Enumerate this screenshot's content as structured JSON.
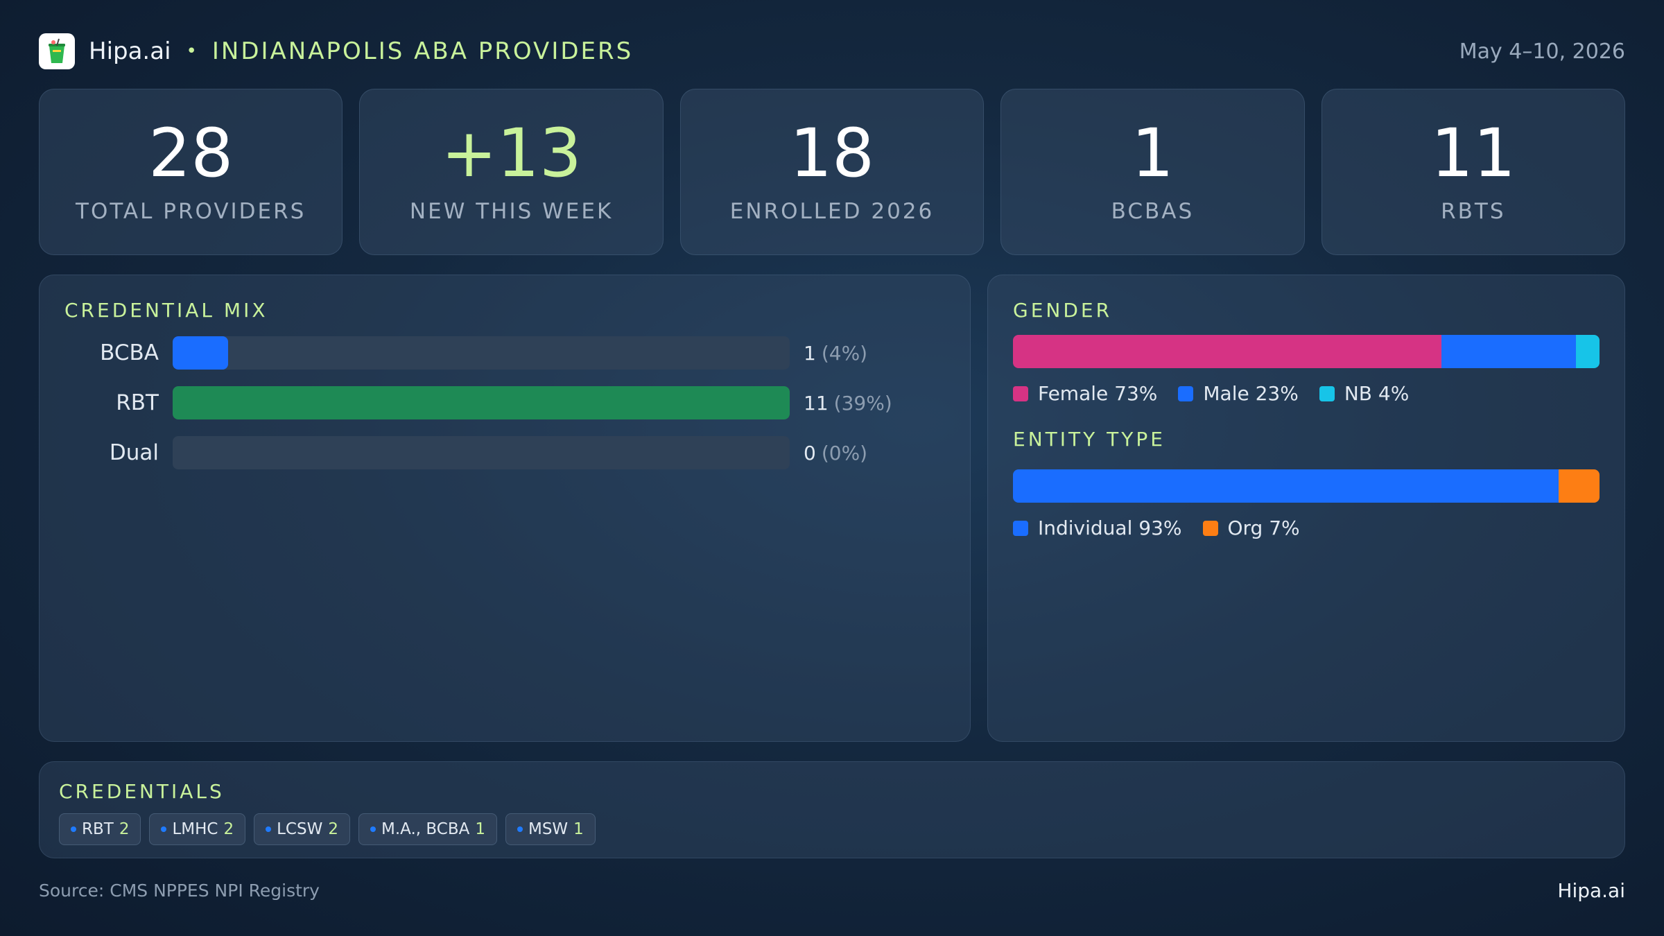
{
  "header": {
    "brand": "Hipa.ai",
    "separator": "•",
    "title": "INDIANAPOLIS ABA PROVIDERS",
    "date_range": "May 4–10, 2026",
    "logo_icon": "drink-cup-icon"
  },
  "kpis": [
    {
      "value": "28",
      "label": "TOTAL PROVIDERS"
    },
    {
      "value": "+13",
      "label": "NEW THIS WEEK"
    },
    {
      "value": "18",
      "label": "ENROLLED 2026"
    },
    {
      "value": "1",
      "label": "BCBAS"
    },
    {
      "value": "11",
      "label": "RBTS"
    }
  ],
  "credential_mix": {
    "title": "CREDENTIAL MIX",
    "rows": [
      {
        "label": "BCBA",
        "count": "1",
        "pct_text": "(4%)",
        "fraction": 0.09,
        "color": "#1a6dff"
      },
      {
        "label": "RBT",
        "count": "11",
        "pct_text": "(39%)",
        "fraction": 1.0,
        "color": "#1e8a55"
      },
      {
        "label": "Dual",
        "count": "0",
        "pct_text": "(0%)",
        "fraction": 0.0,
        "color": "#1a6dff"
      }
    ]
  },
  "gender": {
    "title": "GENDER",
    "segments": [
      {
        "label": "Female 73%",
        "value": 73,
        "color": "#d63384"
      },
      {
        "label": "Male 23%",
        "value": 23,
        "color": "#1a6dff"
      },
      {
        "label": "NB 4%",
        "value": 4,
        "color": "#17c4e8"
      }
    ]
  },
  "entity_type": {
    "title": "ENTITY TYPE",
    "segments": [
      {
        "label": "Individual 93%",
        "value": 93,
        "color": "#1a6dff"
      },
      {
        "label": "Org 7%",
        "value": 7,
        "color": "#fd7e14"
      }
    ]
  },
  "credentials": {
    "title": "CREDENTIALS",
    "chips": [
      {
        "name": "RBT",
        "count": "2"
      },
      {
        "name": "LMHC",
        "count": "2"
      },
      {
        "name": "LCSW",
        "count": "2"
      },
      {
        "name": "M.A., BCBA",
        "count": "1"
      },
      {
        "name": "MSW",
        "count": "1"
      }
    ]
  },
  "footer": {
    "source": "Source: CMS NPPES NPI Registry",
    "brand": "Hipa.ai"
  }
}
